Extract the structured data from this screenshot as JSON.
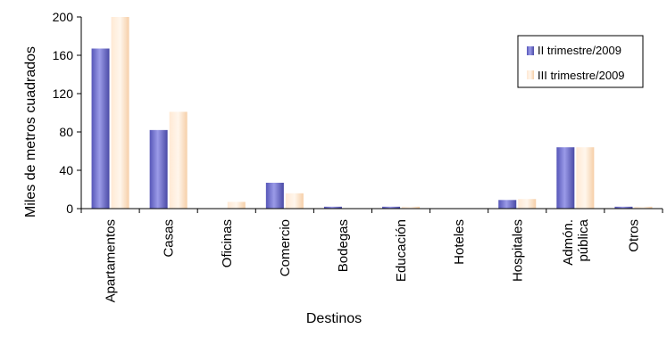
{
  "chart_data": {
    "type": "bar",
    "title": "",
    "xlabel": "Destinos",
    "ylabel": "Miles de metros cuadrados",
    "ylim": [
      0,
      200
    ],
    "yticks": [
      0,
      40,
      80,
      120,
      160,
      200
    ],
    "categories": [
      [
        "Apartamentos"
      ],
      [
        "Casas"
      ],
      [
        "Oficinas"
      ],
      [
        "Comercio"
      ],
      [
        "Bodegas"
      ],
      [
        "Educación"
      ],
      [
        "Hoteles"
      ],
      [
        "Hospitales"
      ],
      [
        "Admón.",
        "pública"
      ],
      [
        "Otros"
      ]
    ],
    "series": [
      {
        "name": "II trimestre/2009",
        "color": "#7b7bd6",
        "values": [
          167,
          82,
          0,
          27,
          2,
          2,
          0,
          9,
          64,
          2
        ]
      },
      {
        "name": "III trimestre/2009",
        "color": "#ffdcbc",
        "values": [
          203,
          101,
          7,
          16,
          0,
          2,
          0,
          10,
          64,
          2
        ]
      }
    ],
    "legend": {
      "position": "top-right"
    },
    "grid": false
  }
}
